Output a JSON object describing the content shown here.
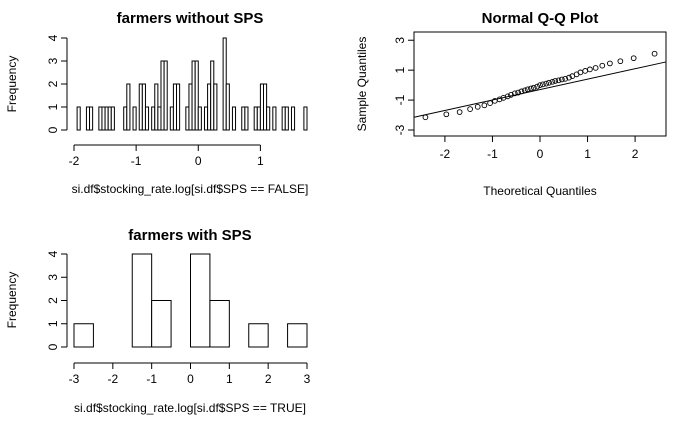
{
  "chart_data": [
    {
      "id": "hist_without",
      "type": "bar",
      "title": "farmers without SPS",
      "xlabel": "si.df$stocking_rate.log[si.df$SPS == FALSE]",
      "ylabel": "Frequency",
      "xlim": [
        -2,
        1.75
      ],
      "ylim": [
        0,
        4
      ],
      "xticks": [
        "-2",
        "-1",
        "0",
        "1"
      ],
      "xtick_values": [
        -2,
        -1,
        0,
        1
      ],
      "yticks": [
        "0",
        "1",
        "2",
        "3",
        "4"
      ],
      "ytick_values": [
        0,
        1,
        2,
        3,
        4
      ],
      "bin_start": -2,
      "bin_width": 0.05,
      "counts": [
        0,
        1,
        0,
        0,
        1,
        1,
        0,
        0,
        1,
        1,
        1,
        1,
        1,
        0,
        0,
        0,
        1,
        2,
        0,
        1,
        0,
        2,
        2,
        1,
        0,
        1,
        2,
        1,
        3,
        3,
        0,
        1,
        2,
        2,
        0,
        0,
        1,
        2,
        3,
        3,
        1,
        0,
        1,
        2,
        3,
        2,
        0,
        0,
        4,
        2,
        0,
        1,
        0,
        0,
        1,
        1,
        0,
        0,
        1,
        1,
        2,
        2,
        1,
        0,
        1,
        0,
        0,
        1,
        1,
        0,
        1,
        0,
        0,
        0,
        1
      ]
    },
    {
      "id": "qq",
      "type": "scatter",
      "title": "Normal Q-Q Plot",
      "xlabel": "Theoretical Quantiles",
      "ylabel": "Sample Quantiles",
      "xlim": [
        -2.65,
        2.65
      ],
      "ylim": [
        -3.4,
        3.55
      ],
      "xticks": [
        "-2",
        "-1",
        "0",
        "1",
        "2"
      ],
      "xtick_values": [
        -2,
        -1,
        0,
        1,
        2
      ],
      "yticks": [
        "-3",
        "-1",
        "1",
        "3"
      ],
      "ytick_values": [
        -3,
        -1,
        1,
        3
      ],
      "points": {
        "x": [
          -2.41,
          -1.97,
          -1.69,
          -1.47,
          -1.31,
          -1.17,
          -1.05,
          -0.95,
          -0.85,
          -0.77,
          -0.68,
          -0.61,
          -0.53,
          -0.46,
          -0.39,
          -0.32,
          -0.26,
          -0.19,
          -0.13,
          -0.06,
          0.0,
          0.06,
          0.13,
          0.19,
          0.26,
          0.32,
          0.39,
          0.46,
          0.53,
          0.61,
          0.68,
          0.77,
          0.85,
          0.95,
          1.05,
          1.17,
          1.31,
          1.47,
          1.69,
          1.97,
          2.41
        ],
        "y": [
          -2.15,
          -1.95,
          -1.8,
          -1.6,
          -1.45,
          -1.35,
          -1.2,
          -1.05,
          -0.95,
          -0.85,
          -0.75,
          -0.65,
          -0.55,
          -0.5,
          -0.42,
          -0.35,
          -0.28,
          -0.22,
          -0.17,
          -0.1,
          0.0,
          0.05,
          0.1,
          0.16,
          0.22,
          0.28,
          0.32,
          0.38,
          0.42,
          0.5,
          0.6,
          0.72,
          0.85,
          0.95,
          1.05,
          1.15,
          1.3,
          1.45,
          1.6,
          1.8,
          2.1
        ]
      },
      "reference_line": {
        "x": [
          -2.65,
          2.65
        ],
        "y": [
          -2.15,
          1.55
        ]
      }
    },
    {
      "id": "hist_with",
      "type": "bar",
      "title": "farmers with SPS",
      "xlabel": "si.df$stocking_rate.log[si.df$SPS == TRUE]",
      "ylabel": "Frequency",
      "xlim": [
        -3,
        3
      ],
      "ylim": [
        0,
        4
      ],
      "xticks": [
        "-3",
        "-2",
        "-1",
        "0",
        "1",
        "2",
        "3"
      ],
      "xtick_values": [
        -3,
        -2,
        -1,
        0,
        1,
        2,
        3
      ],
      "yticks": [
        "0",
        "1",
        "2",
        "3",
        "4"
      ],
      "ytick_values": [
        0,
        1,
        2,
        3,
        4
      ],
      "bin_start": -3,
      "bin_width": 0.5,
      "counts": [
        1,
        0,
        0,
        4,
        2,
        0,
        4,
        2,
        0,
        1,
        0,
        1
      ]
    }
  ]
}
